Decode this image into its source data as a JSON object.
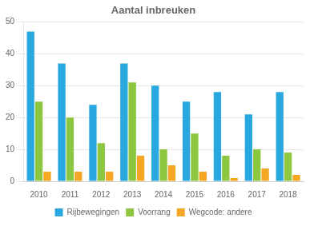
{
  "chart_data": {
    "type": "bar",
    "title": "Aantal inbreuken",
    "categories": [
      "2010",
      "2011",
      "2012",
      "2013",
      "2014",
      "2015",
      "2016",
      "2017",
      "2018"
    ],
    "series": [
      {
        "name": "Rijbewegingen",
        "color": "#29a8e0",
        "values": [
          47,
          37,
          24,
          37,
          30,
          25,
          28,
          21,
          28
        ]
      },
      {
        "name": "Voorrang",
        "color": "#8dc63f",
        "values": [
          25,
          20,
          12,
          31,
          10,
          15,
          8,
          10,
          9
        ]
      },
      {
        "name": "Wegcode: andere",
        "color": "#f5a623",
        "values": [
          3,
          3,
          3,
          8,
          5,
          3,
          1,
          4,
          2
        ]
      }
    ],
    "ylim": [
      0,
      50
    ],
    "yticks": [
      0,
      10,
      20,
      30,
      40,
      50
    ],
    "grid": true,
    "legend": "bottom"
  }
}
